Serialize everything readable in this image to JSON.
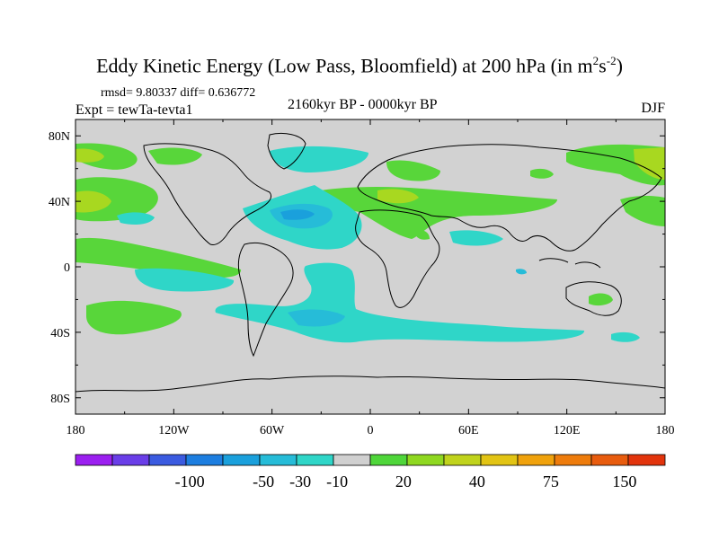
{
  "title": {
    "main": "Eddy Kinetic Energy (Low Pass, Bloomfield) at 200 hPa (in m",
    "sup1": "2",
    "mid": "s",
    "sup2": "-2",
    "end": ")"
  },
  "stats_text": "rmsd= 9.80337 diff= 0.636772",
  "expt_text": "Expt = tewTa-tevta1",
  "period_text": "2160kyr BP - 0000kyr BP",
  "season_text": "DJF",
  "lon_ticks": [
    "180",
    "120W",
    "60W",
    "0",
    "60E",
    "120E",
    "180"
  ],
  "lat_ticks": [
    "80N",
    "40N",
    "0",
    "40S",
    "80S"
  ],
  "colorbar": {
    "colors": [
      "#9b1ff0",
      "#6a3ee8",
      "#3b5be0",
      "#1d7ee0",
      "#1aa0dc",
      "#26bcd8",
      "#2fd6c8",
      "#d0d0d0",
      "#4fd63a",
      "#8fd820",
      "#c0d31c",
      "#e2c414",
      "#f0a20c",
      "#ee7c0c",
      "#e85c0e",
      "#e2340c"
    ],
    "labels": [
      "-100",
      "-50",
      "-30",
      "-10",
      "20",
      "40",
      "75",
      "150"
    ]
  },
  "colors": {
    "land_sea_background": "#d2d2d2",
    "green": "#58d63a",
    "yellow_green": "#a8d820",
    "cyan": "#2fd6c8",
    "light_blue": "#26bcd8",
    "blue": "#1aa0dc"
  }
}
